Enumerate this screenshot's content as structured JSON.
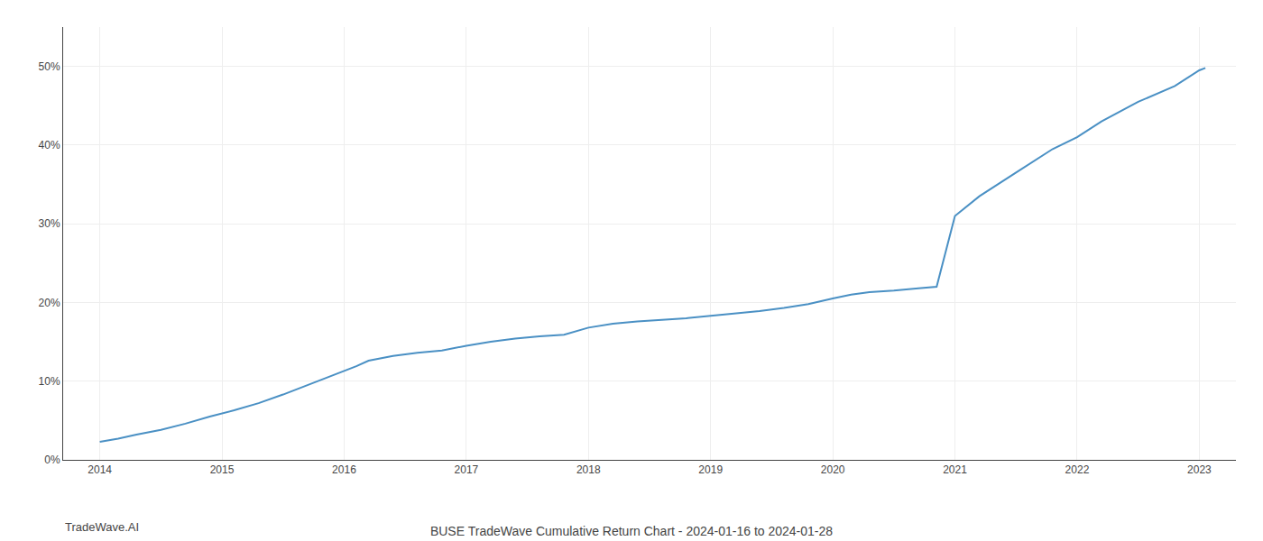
{
  "chart_data": {
    "type": "line",
    "title": "BUSE TradeWave Cumulative Return Chart - 2024-01-16 to 2024-01-28",
    "annotations": [
      {
        "text": "TradeWave.AI"
      }
    ],
    "color": "#4a90c4",
    "x": [
      2014.0,
      2014.15,
      2014.3,
      2014.5,
      2014.7,
      2014.9,
      2015.1,
      2015.3,
      2015.5,
      2015.7,
      2015.9,
      2016.1,
      2016.2,
      2016.4,
      2016.6,
      2016.8,
      2017.0,
      2017.2,
      2017.4,
      2017.6,
      2017.8,
      2018.0,
      2018.2,
      2018.4,
      2018.6,
      2018.8,
      2019.0,
      2019.2,
      2019.4,
      2019.6,
      2019.8,
      2020.0,
      2020.15,
      2020.3,
      2020.5,
      2020.7,
      2020.85,
      2021.0,
      2021.2,
      2021.5,
      2021.8,
      2022.0,
      2022.2,
      2022.5,
      2022.8,
      2023.0,
      2023.05
    ],
    "values": [
      2.3,
      2.7,
      3.2,
      3.8,
      4.6,
      5.5,
      6.3,
      7.2,
      8.3,
      9.5,
      10.7,
      11.9,
      12.6,
      13.2,
      13.6,
      13.9,
      14.5,
      15.0,
      15.4,
      15.7,
      15.9,
      16.8,
      17.3,
      17.6,
      17.8,
      18.0,
      18.3,
      18.6,
      18.9,
      19.3,
      19.8,
      20.5,
      21.0,
      21.3,
      21.5,
      21.8,
      22.0,
      31.0,
      33.5,
      36.5,
      39.5,
      41.0,
      43.0,
      45.5,
      47.5,
      49.5,
      49.8
    ],
    "xlim": [
      2013.7,
      2023.3
    ],
    "ylim": [
      0,
      55
    ],
    "xticks": [
      2014,
      2015,
      2016,
      2017,
      2018,
      2019,
      2020,
      2021,
      2022,
      2023
    ],
    "yticks": [
      {
        "value": 0,
        "label": "0%"
      },
      {
        "value": 10,
        "label": "10%"
      },
      {
        "value": 20,
        "label": "20%"
      },
      {
        "value": 30,
        "label": "30%"
      },
      {
        "value": 40,
        "label": "40%"
      },
      {
        "value": 50,
        "label": "50%"
      }
    ],
    "grid": true
  }
}
